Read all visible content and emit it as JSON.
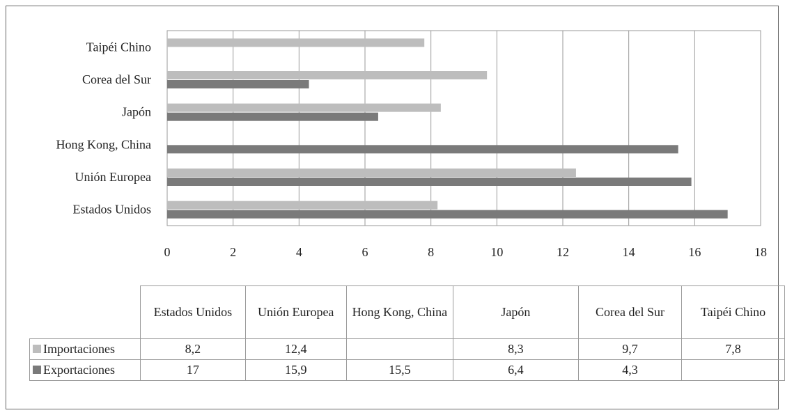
{
  "chart_data": {
    "type": "bar",
    "orientation": "horizontal",
    "categories": [
      "Estados Unidos",
      "Unión Europea",
      "Hong Kong, China",
      "Japón",
      "Corea del Sur",
      "Taipéi Chino"
    ],
    "series": [
      {
        "name": "Importaciones",
        "color": "#bdbdbd",
        "values": [
          8.2,
          12.4,
          null,
          8.3,
          9.7,
          7.8
        ]
      },
      {
        "name": "Exportaciones",
        "color": "#7a7a7a",
        "values": [
          17,
          15.9,
          15.5,
          6.4,
          4.3,
          null
        ]
      }
    ],
    "xlim": [
      0,
      18
    ],
    "xticks": [
      "0",
      "2",
      "4",
      "6",
      "8",
      "10",
      "12",
      "14",
      "16",
      "18"
    ],
    "grid": "vertical",
    "legend": "data-table"
  },
  "table": {
    "headers": [
      "Estados Unidos",
      "Unión Europea",
      "Hong Kong, China",
      "Japón",
      "Corea del Sur",
      "Taipéi Chino"
    ],
    "rows": [
      {
        "label": "Importaciones",
        "color": "#bdbdbd",
        "cells": [
          "8,2",
          "12,4",
          "",
          "8,3",
          "9,7",
          "7,8"
        ]
      },
      {
        "label": "Exportaciones",
        "color": "#7a7a7a",
        "cells": [
          "17",
          "15,9",
          "15,5",
          "6,4",
          "4,3",
          ""
        ]
      }
    ]
  }
}
